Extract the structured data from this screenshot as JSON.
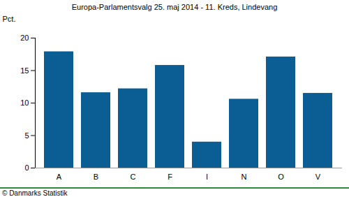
{
  "chart_data": {
    "type": "bar",
    "title": "Europa-Parlamentsvalg 25. maj 2014 - 11. Kreds, Lindevang",
    "y_label": "Pct.",
    "caption": "© Danmarks Statistik",
    "categories": [
      "A",
      "B",
      "C",
      "F",
      "I",
      "N",
      "O",
      "V"
    ],
    "values": [
      17.9,
      11.6,
      12.2,
      15.8,
      4.0,
      10.6,
      17.1,
      11.5
    ],
    "color": "#0b5e94",
    "ylim": [
      0,
      20
    ],
    "yticks": [
      0,
      5,
      10,
      15,
      20
    ],
    "grid": false
  }
}
